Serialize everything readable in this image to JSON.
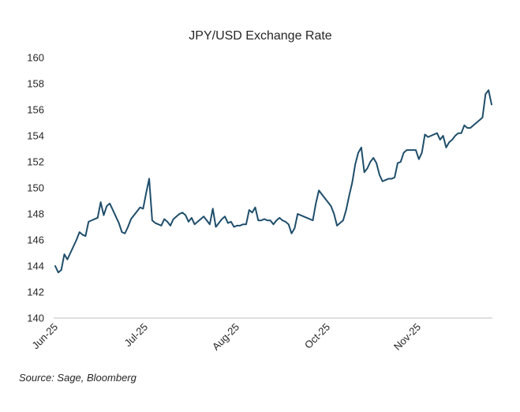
{
  "chart_data": {
    "type": "line",
    "title": "JPY/USD Exchange Rate",
    "xlabel": "",
    "ylabel": "",
    "ylim": [
      140,
      160
    ],
    "yticks": [
      140,
      142,
      144,
      146,
      148,
      150,
      152,
      154,
      156,
      158,
      160
    ],
    "xticks": [
      "Jun-25",
      "Jul-25",
      "Aug-25",
      "Oct-25",
      "Nov-25"
    ],
    "grid": false,
    "legend": "none",
    "line_color": "#1f4e6b",
    "series": [
      {
        "values": [
          144.0,
          143.5,
          143.7,
          144.9,
          144.5,
          145.0,
          145.5,
          146.0,
          146.6,
          146.4,
          146.3,
          147.4,
          147.5,
          147.6,
          147.7,
          148.9,
          147.9,
          148.6,
          148.8,
          148.3,
          147.8,
          147.3,
          146.6,
          146.5,
          147.0,
          147.6,
          147.9,
          148.2,
          148.5,
          148.4,
          149.6,
          150.7,
          147.5,
          147.3,
          147.2,
          147.1,
          147.6,
          147.4,
          147.1,
          147.6,
          147.8,
          148.0,
          148.1,
          147.9,
          147.4,
          147.7,
          147.2,
          147.4,
          147.6,
          147.8,
          147.5,
          147.2,
          148.4,
          147.0,
          147.3,
          147.6,
          147.8,
          147.3,
          147.4,
          147.0,
          147.1,
          147.1,
          147.2,
          147.2,
          148.3,
          148.1,
          148.5,
          147.5,
          147.5,
          147.6,
          147.5,
          147.5,
          147.2,
          147.5,
          147.7,
          147.5,
          147.4,
          147.2,
          146.5,
          146.9,
          148.0,
          147.9,
          147.8,
          147.7,
          147.6,
          147.5,
          148.8,
          149.8,
          149.5,
          149.2,
          148.9,
          148.6,
          148.0,
          147.1,
          147.3,
          147.5,
          148.3,
          149.4,
          150.4,
          151.8,
          152.7,
          153.1,
          151.2,
          151.5,
          152.0,
          152.3,
          151.9,
          151.0,
          150.5,
          150.6,
          150.7,
          150.7,
          150.8,
          151.9,
          152.0,
          152.7,
          152.9,
          152.9,
          152.9,
          152.9,
          152.2,
          152.7,
          154.1,
          153.9,
          154.0,
          154.1,
          154.2,
          153.7,
          154.0,
          153.1,
          153.5,
          153.7,
          154.0,
          154.2,
          154.2,
          154.8,
          154.6,
          154.6,
          154.8,
          155.0,
          155.2,
          155.4,
          157.2,
          157.5,
          156.4
        ]
      }
    ],
    "source": "Source: Sage, Bloomberg"
  }
}
